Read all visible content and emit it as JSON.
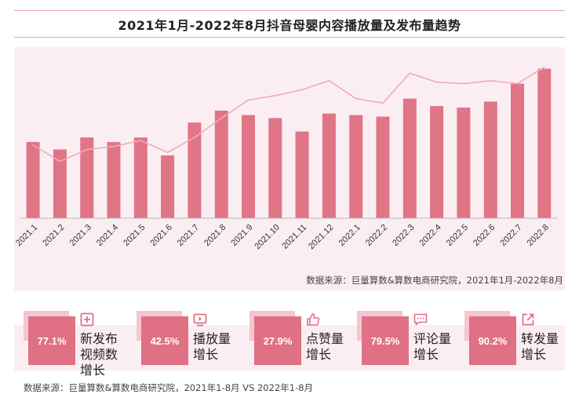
{
  "title": "2021年1月-2022年8月抖音母婴内容播放量及发布量趋势",
  "chart_data": {
    "type": "bar",
    "title": "2021年1月-2022年8月抖音母婴内容播放量及发布量趋势",
    "categories": [
      "2021.1",
      "2021.2",
      "2021.3",
      "2021.4",
      "2021.5",
      "2021.6",
      "2021.7",
      "2021.8",
      "2021.9",
      "2021.10",
      "2021.11",
      "2021.12",
      "2022.1",
      "2022.2",
      "2022.3",
      "2022.4",
      "2022.5",
      "2022.6",
      "2022.7",
      "2022.8"
    ],
    "series": [
      {
        "name": "播放量",
        "type": "bar",
        "color": "#e07586",
        "values": [
          51,
          46,
          54,
          51,
          54,
          42,
          64,
          72,
          69,
          67,
          58,
          70,
          69,
          68,
          80,
          75,
          74,
          78,
          90,
          100
        ]
      },
      {
        "name": "发布量",
        "type": "line",
        "color": "#f4a8bd",
        "values": [
          49,
          38,
          46,
          48,
          52,
          44,
          54,
          67,
          79,
          82,
          86,
          92,
          80,
          77,
          97,
          91,
          90,
          92,
          90,
          101
        ]
      }
    ],
    "ylim": [
      0,
      105
    ],
    "xlabel": "",
    "ylabel": "",
    "grid": false,
    "yaxis_visible": false
  },
  "source_chart": "数据来源：巨量算数&算数电商研究院，2021年1月-2022年8月",
  "stats": [
    {
      "pct": "77.1%",
      "label": "新发布视频数增长",
      "icon": "plus-square-icon"
    },
    {
      "pct": "42.5%",
      "label": "播放量增长",
      "icon": "play-video-icon"
    },
    {
      "pct": "27.9%",
      "label": "点赞量增长",
      "icon": "thumbs-up-icon"
    },
    {
      "pct": "79.5%",
      "label": "评论量增长",
      "icon": "comment-icon"
    },
    {
      "pct": "90.2%",
      "label": "转发量增长",
      "icon": "share-icon"
    }
  ],
  "source_bottom": "数据来源：巨量算数&算数电商研究院，2021年1-8月 VS 2022年1-8月",
  "colors": {
    "accent": "#e07083",
    "accent_light": "#f4c6d2",
    "panel_bg": "#fbeef2",
    "line": "#f4a8bd"
  }
}
